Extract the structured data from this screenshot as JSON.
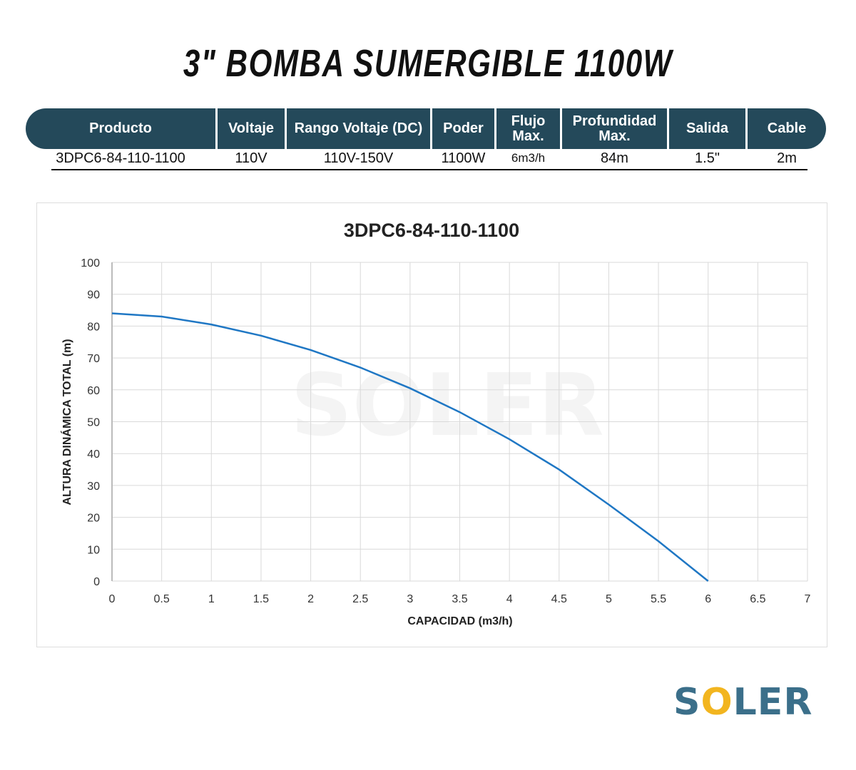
{
  "title": "3\" BOMBA SUMERGIBLE 1100W",
  "table": {
    "headers": [
      "Producto",
      "Voltaje",
      "Rango Voltaje (DC)",
      "Poder",
      "Flujo Max.",
      "Profundidad Max.",
      "Salida",
      "Cable"
    ],
    "row": [
      "3DPC6-84-110-1100",
      "110V",
      "110V-150V",
      "1100W",
      "6m3/h",
      "84m",
      "1.5\"",
      "2m"
    ]
  },
  "brand": {
    "name": "SOLER",
    "colors": {
      "text": "#3b6f8a",
      "leaf": "#6cb84a",
      "sun": "#f2b51f"
    }
  },
  "chart_data": {
    "type": "line",
    "title": "3DPC6-84-110-1100",
    "xlabel": "CAPACIDAD (m3/h)",
    "ylabel": "ALTURA DINÁMICA TOTAL (m)",
    "xlim": [
      0,
      7
    ],
    "ylim": [
      0,
      100
    ],
    "xticks": [
      "0",
      "0.5",
      "1",
      "1.5",
      "2",
      "2.5",
      "3",
      "3.5",
      "4",
      "4.5",
      "5",
      "5.5",
      "6",
      "6.5",
      "7"
    ],
    "yticks": [
      "0",
      "10",
      "20",
      "30",
      "40",
      "50",
      "60",
      "70",
      "80",
      "90",
      "100"
    ],
    "grid": true,
    "color": "#1f77c4",
    "x": [
      0,
      0.5,
      1,
      1.5,
      2,
      2.5,
      3,
      3.5,
      4,
      4.5,
      5,
      5.5,
      6
    ],
    "y": [
      84,
      83,
      80.5,
      77,
      72.5,
      67,
      60.5,
      53,
      44.5,
      35,
      24,
      12.5,
      0
    ]
  }
}
